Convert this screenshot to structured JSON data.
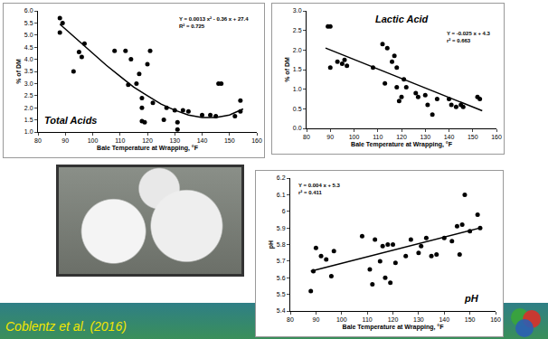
{
  "chart_data": [
    {
      "type": "scatter",
      "title": "Total Acids",
      "annotations": [
        "Y = 0.0013 x² - 0.36 x + 27.4",
        "R² = 0.725"
      ],
      "xlabel": "Bale Temperature at Wrapping, °F",
      "ylabel": "% of DM",
      "xlim": [
        80,
        160
      ],
      "xticks": [
        80,
        90,
        100,
        110,
        120,
        130,
        140,
        150,
        160
      ],
      "ylim": [
        1.0,
        6.0
      ],
      "yticks": [
        {
          "value": 1,
          "label": "1.0"
        },
        {
          "value": 1.5,
          "label": "1.5"
        },
        {
          "value": 2,
          "label": "2.0"
        },
        {
          "value": 2.5,
          "label": "2.5"
        },
        {
          "value": 3,
          "label": "3.0"
        },
        {
          "value": 3.5,
          "label": "3.5"
        },
        {
          "value": 4,
          "label": "4.0"
        },
        {
          "value": 4.5,
          "label": "4.5"
        },
        {
          "value": 5,
          "label": "5.0"
        },
        {
          "value": 5.5,
          "label": "5.5"
        },
        {
          "value": 6,
          "label": "6.0"
        }
      ],
      "grid": false,
      "series": [
        {
          "color": "#000000",
          "marker": "circle",
          "x": [
            88,
            89,
            88,
            93,
            95,
            96,
            97,
            108,
            112,
            114,
            113,
            116,
            117,
            118,
            118,
            119,
            118,
            120,
            121,
            122,
            126,
            127,
            130,
            131,
            131,
            133,
            135,
            140,
            143,
            145,
            146,
            147,
            152,
            154,
            154
          ],
          "values": [
            5.7,
            5.5,
            5.1,
            3.5,
            4.3,
            4.1,
            4.65,
            4.35,
            4.35,
            4.0,
            2.95,
            3.0,
            3.4,
            2.0,
            1.45,
            1.4,
            2.4,
            3.8,
            4.35,
            2.2,
            1.5,
            2.0,
            1.9,
            1.4,
            1.1,
            1.9,
            1.85,
            1.7,
            1.7,
            1.65,
            3.0,
            3.0,
            1.65,
            1.85,
            2.3
          ]
        },
        {
          "color": "#000000",
          "line_style": "solid",
          "x": [
            88,
            95,
            100,
            105,
            110,
            115,
            120,
            125,
            130,
            135,
            140,
            145,
            150,
            155
          ],
          "values": [
            5.45,
            4.75,
            4.25,
            3.75,
            3.3,
            2.85,
            2.5,
            2.15,
            1.9,
            1.7,
            1.6,
            1.6,
            1.7,
            1.95
          ]
        }
      ]
    },
    {
      "type": "scatter",
      "title": "Lactic Acid",
      "annotations": [
        "Y = -0.025 x + 4.3",
        "r² = 0.663"
      ],
      "xlabel": "Bale Temperature at Wrapping, °F",
      "ylabel": "% of DM",
      "xlim": [
        80,
        160
      ],
      "xticks": [
        80,
        90,
        100,
        110,
        120,
        130,
        140,
        150,
        160
      ],
      "ylim": [
        0.0,
        3.0
      ],
      "yticks": [
        {
          "value": 0,
          "label": "0.0"
        },
        {
          "value": 0.5,
          "label": "0.5"
        },
        {
          "value": 1,
          "label": "1.0"
        },
        {
          "value": 1.5,
          "label": "1.5"
        },
        {
          "value": 2,
          "label": "2.0"
        },
        {
          "value": 2.5,
          "label": "2.5"
        },
        {
          "value": 3,
          "label": "3.0"
        }
      ],
      "grid": false,
      "series": [
        {
          "color": "#000000",
          "marker": "circle",
          "x": [
            89,
            90,
            90,
            93,
            95,
            96,
            97,
            108,
            112,
            114,
            113,
            116,
            117,
            118,
            118,
            119,
            120,
            121,
            122,
            126,
            127,
            130,
            131,
            133,
            135,
            140,
            141,
            143,
            145,
            146,
            152,
            153
          ],
          "values": [
            2.6,
            2.6,
            1.55,
            1.7,
            1.65,
            1.75,
            1.6,
            1.55,
            2.15,
            2.05,
            1.15,
            1.7,
            1.85,
            1.55,
            1.05,
            0.7,
            0.8,
            1.25,
            1.05,
            0.9,
            0.8,
            0.85,
            0.6,
            0.35,
            0.75,
            0.75,
            0.6,
            0.55,
            0.6,
            0.55,
            0.8,
            0.75
          ]
        },
        {
          "color": "#000000",
          "line_style": "solid",
          "x": [
            88,
            154
          ],
          "values": [
            2.05,
            0.45
          ]
        }
      ]
    },
    {
      "type": "scatter",
      "title": "pH",
      "annotations": [
        "Y = 0.004 x + 5.3",
        "r² = 0.411"
      ],
      "xlabel": "Bale Temperature at Wrapping, °F",
      "ylabel": "pH",
      "xlim": [
        80,
        160
      ],
      "xticks": [
        80,
        90,
        100,
        110,
        120,
        130,
        140,
        150,
        160
      ],
      "ylim": [
        5.4,
        6.2
      ],
      "yticks": [
        5.4,
        5.5,
        5.6,
        5.7,
        5.8,
        5.9,
        6.0,
        {
          "value": 6.1,
          "label": "6.1"
        },
        {
          "value": 6.2,
          "label": "6.2"
        }
      ],
      "grid": false,
      "series": [
        {
          "color": "#000000",
          "marker": "circle",
          "x": [
            88,
            89,
            90,
            92,
            94,
            96,
            97,
            108,
            111,
            112,
            113,
            115,
            116,
            117,
            118,
            119,
            120,
            121,
            125,
            127,
            130,
            131,
            133,
            135,
            137,
            140,
            143,
            145,
            146,
            147,
            148,
            150,
            153,
            154
          ],
          "values": [
            5.52,
            5.64,
            5.78,
            5.73,
            5.71,
            5.61,
            5.76,
            5.85,
            5.65,
            5.56,
            5.83,
            5.7,
            5.79,
            5.6,
            5.8,
            5.57,
            5.8,
            5.69,
            5.73,
            5.83,
            5.75,
            5.79,
            5.84,
            5.73,
            5.74,
            5.84,
            5.82,
            5.91,
            5.74,
            5.92,
            6.1,
            5.88,
            5.98,
            5.9
          ]
        },
        {
          "color": "#000000",
          "line_style": "solid",
          "x": [
            88,
            154
          ],
          "values": [
            5.64,
            5.9
          ]
        }
      ]
    }
  ],
  "footer": "Coblentz et al. (2016)"
}
